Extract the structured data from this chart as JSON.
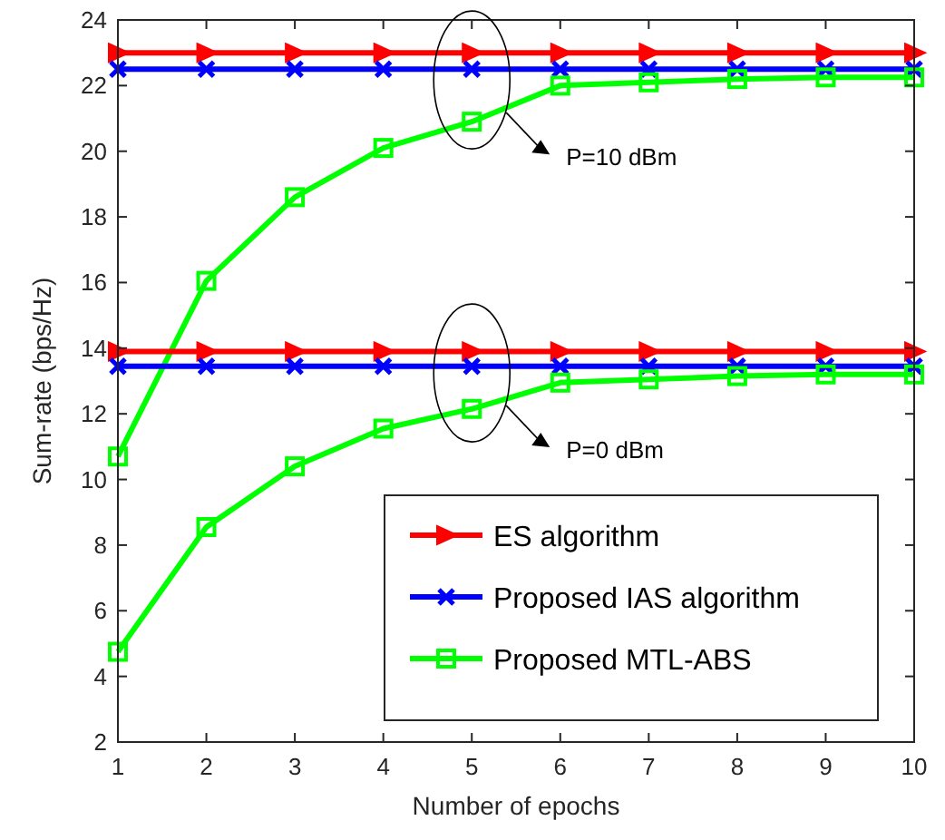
{
  "chart_data": {
    "type": "line",
    "xlabel": "Number of epochs",
    "ylabel": "Sum-rate (bps/Hz)",
    "x": [
      1,
      2,
      3,
      4,
      5,
      6,
      7,
      8,
      9,
      10
    ],
    "series": [
      {
        "name": "ES algorithm",
        "color": "#ff0000",
        "marker": "triangle",
        "values": [
          23,
          23,
          23,
          23,
          23,
          23,
          23,
          23,
          23,
          23
        ]
      },
      {
        "name": "Proposed IAS algorithm",
        "color": "#0000ff",
        "marker": "cross",
        "values": [
          22.5,
          22.5,
          22.5,
          22.5,
          22.5,
          22.5,
          22.5,
          22.5,
          22.5,
          22.5
        ]
      },
      {
        "name": "Proposed MTL-ABS",
        "color": "#00ff00",
        "marker": "square",
        "values": [
          10.7,
          16.05,
          18.6,
          20.1,
          20.9,
          22.0,
          22.1,
          22.2,
          22.25,
          22.25
        ]
      },
      {
        "color": "#ff0000",
        "marker": "triangle",
        "values": [
          13.9,
          13.9,
          13.9,
          13.9,
          13.9,
          13.9,
          13.9,
          13.9,
          13.9,
          13.9
        ]
      },
      {
        "color": "#0000ff",
        "marker": "cross",
        "values": [
          13.45,
          13.45,
          13.45,
          13.45,
          13.45,
          13.45,
          13.45,
          13.45,
          13.45,
          13.45
        ]
      },
      {
        "color": "#00ff00",
        "marker": "square",
        "values": [
          4.75,
          8.55,
          10.4,
          11.55,
          12.15,
          12.95,
          13.05,
          13.15,
          13.2,
          13.2
        ]
      }
    ],
    "xlim": [
      1,
      10
    ],
    "xticks": [
      1,
      2,
      3,
      4,
      5,
      6,
      7,
      8,
      9,
      10
    ],
    "ylim": [
      2,
      24
    ],
    "yticks": [
      2,
      4,
      6,
      8,
      10,
      12,
      14,
      16,
      18,
      20,
      22,
      24
    ],
    "line_style": "solid",
    "grid": false,
    "legend": "bottom right",
    "annotations": [
      "P=10 dBm",
      "P=0 dBm"
    ]
  }
}
